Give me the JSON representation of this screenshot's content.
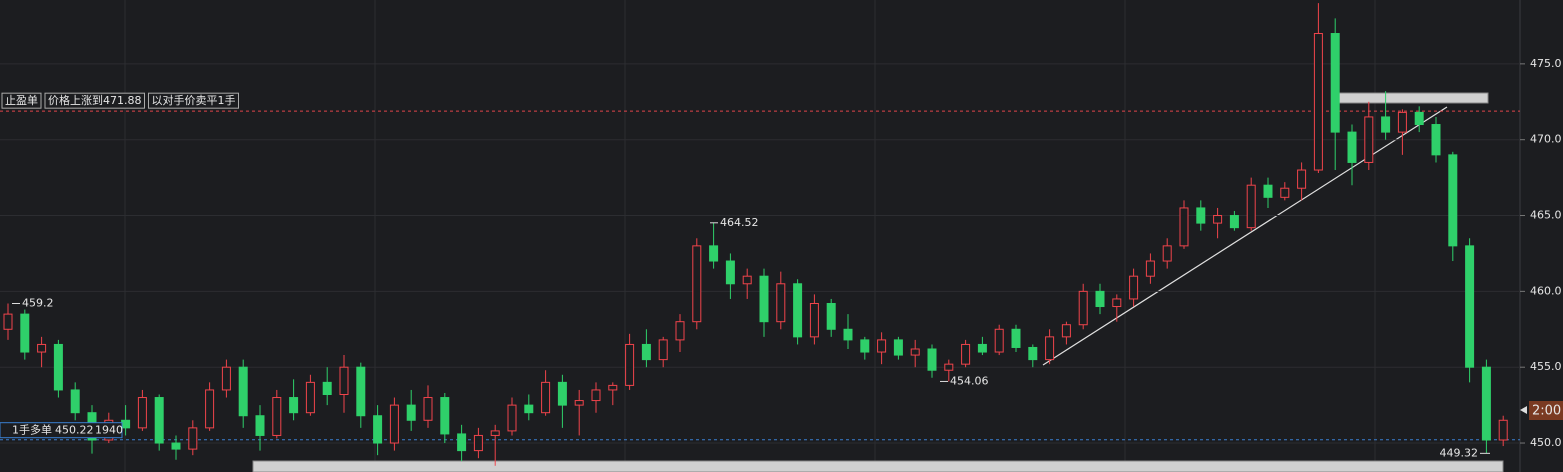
{
  "chart_data": {
    "type": "candlestick",
    "up_color": "#f0444b",
    "down_color": "#2fd06a",
    "ylim": [
      448.09,
      479.21
    ],
    "yticks": [
      {
        "value": 450,
        "label": "450.0"
      },
      {
        "value": 455,
        "label": "455.0"
      },
      {
        "value": 460,
        "label": "460.0"
      },
      {
        "value": 465,
        "label": "465.0"
      },
      {
        "value": 470,
        "label": "470.0"
      },
      {
        "value": 475,
        "label": "475.0"
      }
    ],
    "grid": true,
    "candles": [
      [
        457.5,
        459.2,
        456.8,
        458.5
      ],
      [
        458.5,
        458.8,
        455.5,
        456
      ],
      [
        456,
        457,
        455,
        456.5
      ],
      [
        456.5,
        456.8,
        453,
        453.5
      ],
      [
        453.5,
        454,
        451.5,
        452
      ],
      [
        452,
        452.5,
        449.3,
        450.2
      ],
      [
        450.2,
        452,
        450,
        451.5
      ],
      [
        451.5,
        452.5,
        450.5,
        451
      ],
      [
        451,
        453.5,
        450.8,
        453
      ],
      [
        453,
        453.2,
        449.5,
        450
      ],
      [
        450,
        450.5,
        448.9,
        449.6
      ],
      [
        449.6,
        451.5,
        449.2,
        451
      ],
      [
        451,
        454,
        450.8,
        453.5
      ],
      [
        453.5,
        455.5,
        453,
        455
      ],
      [
        455,
        455.5,
        451,
        451.8
      ],
      [
        451.8,
        452.5,
        449.5,
        450.5
      ],
      [
        450.5,
        453.5,
        450.3,
        453
      ],
      [
        453,
        454.2,
        451.5,
        452
      ],
      [
        452,
        454.5,
        451.8,
        454
      ],
      [
        454,
        455,
        452.5,
        453.2
      ],
      [
        453.2,
        455.8,
        452,
        455
      ],
      [
        455,
        455.3,
        451,
        451.8
      ],
      [
        451.8,
        452.5,
        449.2,
        450
      ],
      [
        450,
        453,
        449.5,
        452.5
      ],
      [
        452.5,
        453.5,
        450.8,
        451.5
      ],
      [
        451.5,
        453.8,
        451,
        453
      ],
      [
        453,
        453.3,
        450,
        450.6
      ],
      [
        450.6,
        451.2,
        448.8,
        449.5
      ],
      [
        449.5,
        451,
        449,
        450.5
      ],
      [
        450.5,
        451.2,
        448.5,
        450.8
      ],
      [
        450.8,
        453,
        450.5,
        452.5
      ],
      [
        452.5,
        453.2,
        451.5,
        452
      ],
      [
        452,
        454.8,
        451.8,
        454
      ],
      [
        454,
        454.5,
        451,
        452.5
      ],
      [
        452.5,
        453.5,
        450.5,
        452.8
      ],
      [
        452.8,
        454,
        452,
        453.5
      ],
      [
        453.5,
        454,
        452.5,
        453.8
      ],
      [
        453.8,
        457.2,
        453.5,
        456.5
      ],
      [
        456.5,
        457.5,
        455,
        455.5
      ],
      [
        455.5,
        457,
        455,
        456.8
      ],
      [
        456.8,
        458.5,
        456,
        458
      ],
      [
        458,
        463.5,
        457.5,
        463
      ],
      [
        463,
        464.52,
        461.5,
        462
      ],
      [
        462,
        462.5,
        459.5,
        460.5
      ],
      [
        460.5,
        461.5,
        459.5,
        461
      ],
      [
        461,
        461.5,
        457,
        458
      ],
      [
        458,
        461.3,
        457.5,
        460.5
      ],
      [
        460.5,
        460.8,
        456.5,
        457
      ],
      [
        457,
        459.8,
        456.5,
        459.2
      ],
      [
        459.2,
        459.5,
        457,
        457.5
      ],
      [
        457.5,
        458.5,
        456.2,
        456.8
      ],
      [
        456.8,
        457,
        455.5,
        456
      ],
      [
        456,
        457.3,
        455.2,
        456.8
      ],
      [
        456.8,
        457,
        455.5,
        455.8
      ],
      [
        455.8,
        456.8,
        455,
        456.2
      ],
      [
        456.2,
        456.5,
        454.3,
        454.8
      ],
      [
        454.8,
        455.5,
        454.06,
        455.2
      ],
      [
        455.2,
        456.8,
        455,
        456.5
      ],
      [
        456.5,
        457,
        455.8,
        456
      ],
      [
        456,
        457.8,
        455.8,
        457.5
      ],
      [
        457.5,
        457.8,
        456,
        456.3
      ],
      [
        456.3,
        456.5,
        455,
        455.5
      ],
      [
        455.5,
        457.5,
        455.2,
        457
      ],
      [
        457,
        458,
        456.5,
        457.8
      ],
      [
        457.8,
        460.5,
        457.5,
        460
      ],
      [
        460,
        460.5,
        458.5,
        459
      ],
      [
        459,
        459.8,
        458,
        459.5
      ],
      [
        459.5,
        461.5,
        459,
        461
      ],
      [
        461,
        462.5,
        460.5,
        462
      ],
      [
        462,
        463.5,
        461.5,
        463
      ],
      [
        463,
        466,
        462.8,
        465.5
      ],
      [
        465.5,
        466,
        464,
        464.5
      ],
      [
        464.5,
        465.5,
        463.5,
        465
      ],
      [
        465,
        465.3,
        464,
        464.2
      ],
      [
        464.2,
        467.5,
        464,
        467
      ],
      [
        467,
        467.5,
        465.5,
        466.2
      ],
      [
        466.2,
        467.2,
        466,
        466.8
      ],
      [
        466.8,
        468.5,
        466,
        468
      ],
      [
        468,
        479,
        467.8,
        477
      ],
      [
        477,
        478,
        468,
        470.5
      ],
      [
        470.5,
        471,
        467,
        468.5
      ],
      [
        468.5,
        472.5,
        468,
        471.5
      ],
      [
        471.5,
        473.2,
        470,
        470.5
      ],
      [
        470.5,
        472,
        469,
        471.8
      ],
      [
        471.8,
        472.2,
        470.5,
        471
      ],
      [
        471,
        471.5,
        468.5,
        469
      ],
      [
        469,
        469.2,
        462,
        463
      ],
      [
        463,
        463.5,
        454,
        455
      ],
      [
        455,
        455.5,
        449.32,
        450.2
      ],
      [
        450.2,
        451.8,
        449.8,
        451.5
      ]
    ],
    "extremes": [
      459.2,
      464.52,
      454.06,
      449.32
    ],
    "order": {
      "label": "止盈单",
      "condition": "价格上涨到471.88",
      "action": "以对手价卖平1手",
      "price": 471.88
    },
    "position": {
      "label": "1手多单",
      "price": 450.22,
      "quantity": 1940
    },
    "countdown": "2:00"
  }
}
